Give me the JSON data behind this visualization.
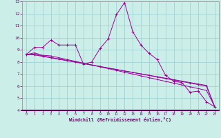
{
  "xlabel": "Windchill (Refroidissement éolien,°C)",
  "x_values": [
    0,
    1,
    2,
    3,
    4,
    5,
    6,
    7,
    8,
    9,
    10,
    11,
    12,
    13,
    14,
    15,
    16,
    17,
    18,
    19,
    20,
    21,
    22,
    23
  ],
  "series1": [
    8.6,
    9.2,
    9.2,
    9.8,
    9.4,
    9.4,
    9.4,
    7.8,
    8.0,
    9.1,
    9.9,
    11.9,
    12.9,
    10.5,
    9.4,
    8.7,
    8.2,
    6.9,
    6.4,
    6.3,
    5.5,
    5.6,
    4.7,
    4.3
  ],
  "series2": [
    8.6,
    8.75,
    8.55,
    8.5,
    8.35,
    8.2,
    8.05,
    7.9,
    7.75,
    7.6,
    7.45,
    7.3,
    7.15,
    7.0,
    6.85,
    6.7,
    6.55,
    6.4,
    6.25,
    6.1,
    5.95,
    5.8,
    5.65,
    4.3
  ],
  "series3": [
    8.6,
    8.65,
    8.5,
    8.38,
    8.25,
    8.13,
    8.0,
    7.88,
    7.75,
    7.63,
    7.5,
    7.38,
    7.25,
    7.13,
    7.0,
    6.88,
    6.75,
    6.63,
    6.5,
    6.38,
    6.25,
    6.13,
    6.0,
    4.3
  ],
  "series4": [
    8.6,
    8.58,
    8.46,
    8.34,
    8.22,
    8.1,
    7.98,
    7.86,
    7.74,
    7.62,
    7.5,
    7.38,
    7.26,
    7.14,
    7.02,
    6.9,
    6.78,
    6.66,
    6.54,
    6.42,
    6.3,
    6.18,
    6.06,
    4.3
  ],
  "line_color": "#990099",
  "bg_color": "#cceee8",
  "grid_color": "#99cccc",
  "ylim": [
    4,
    13
  ],
  "xlim": [
    -0.5,
    23.5
  ],
  "yticks": [
    4,
    5,
    6,
    7,
    8,
    9,
    10,
    11,
    12,
    13
  ]
}
